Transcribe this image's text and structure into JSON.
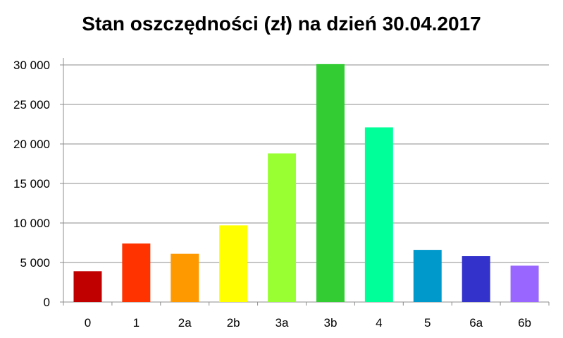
{
  "chart_data": {
    "type": "bar",
    "title": "Stan oszczędności (zł) na dzień 30.04.2017",
    "xlabel": "",
    "ylabel": "",
    "categories": [
      "0",
      "1",
      "2a",
      "2b",
      "3a",
      "3b",
      "4",
      "5",
      "6a",
      "6b"
    ],
    "values": [
      3900,
      7400,
      6100,
      9700,
      18800,
      30100,
      22100,
      6600,
      5800,
      4600
    ],
    "colors": [
      "#c00000",
      "#ff3300",
      "#ff9900",
      "#ffff00",
      "#99ff33",
      "#33cc33",
      "#00ff99",
      "#0099cc",
      "#3333cc",
      "#9966ff"
    ],
    "ylim": [
      0,
      30000
    ],
    "yticks": [
      0,
      5000,
      10000,
      15000,
      20000,
      25000,
      30000
    ],
    "ytick_labels": [
      "0",
      "5 000",
      "10 000",
      "15 000",
      "20 000",
      "25 000",
      "30 000"
    ],
    "grid": true,
    "legend": "none"
  }
}
